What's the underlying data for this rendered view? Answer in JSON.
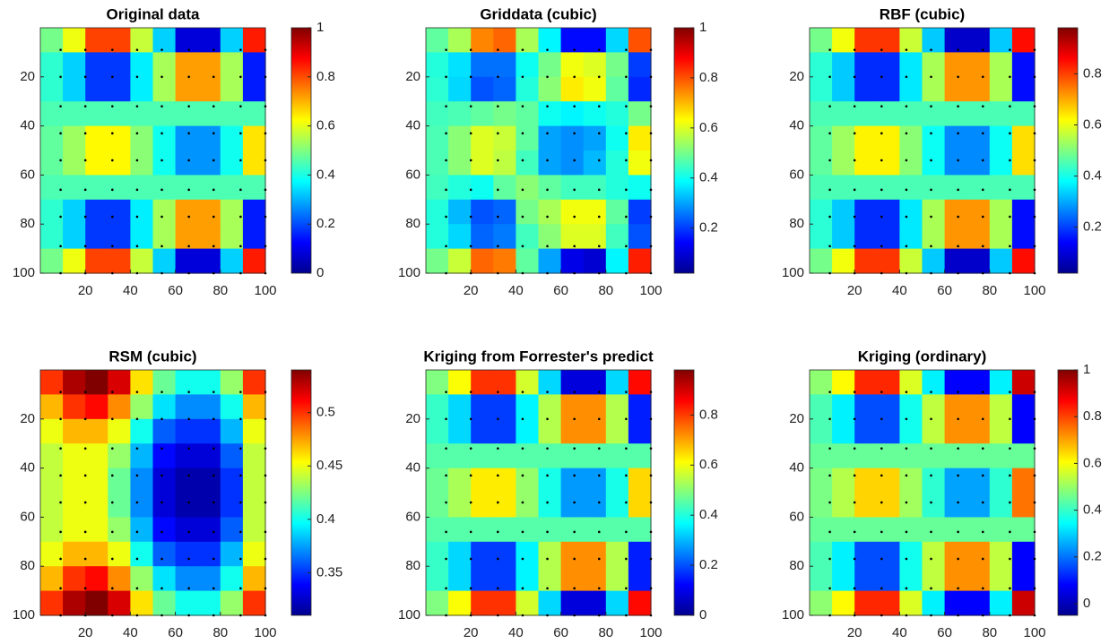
{
  "chart_data": [
    {
      "type": "heatmap",
      "title": "Original data",
      "colormap": "jet",
      "y_reversed": true,
      "xlim": [
        0,
        100
      ],
      "ylim": [
        0,
        100
      ],
      "xticks": [
        20,
        40,
        60,
        80,
        100
      ],
      "yticks": [
        20,
        40,
        60,
        80,
        100
      ],
      "clim": [
        0,
        1
      ],
      "cticks": [
        0,
        0.2,
        0.4,
        0.6,
        0.8,
        1
      ],
      "sample_positions": [
        9,
        20,
        32,
        43,
        54,
        66,
        77,
        89,
        100
      ],
      "z": [
        [
          0.49,
          0.61,
          0.81,
          0.81,
          0.57,
          0.33,
          0.09,
          0.09,
          0.33,
          0.85
        ],
        [
          0.42,
          0.33,
          0.18,
          0.18,
          0.36,
          0.54,
          0.72,
          0.72,
          0.54,
          0.15
        ],
        [
          0.42,
          0.33,
          0.18,
          0.18,
          0.36,
          0.54,
          0.72,
          0.72,
          0.54,
          0.15
        ],
        [
          0.45,
          0.45,
          0.45,
          0.45,
          0.45,
          0.45,
          0.45,
          0.45,
          0.45,
          0.45
        ],
        [
          0.47,
          0.53,
          0.63,
          0.63,
          0.51,
          0.39,
          0.27,
          0.27,
          0.39,
          0.65
        ],
        [
          0.47,
          0.53,
          0.63,
          0.63,
          0.51,
          0.39,
          0.27,
          0.27,
          0.39,
          0.65
        ],
        [
          0.45,
          0.45,
          0.45,
          0.45,
          0.45,
          0.45,
          0.45,
          0.45,
          0.45,
          0.45
        ],
        [
          0.42,
          0.33,
          0.18,
          0.18,
          0.36,
          0.54,
          0.72,
          0.72,
          0.54,
          0.15
        ],
        [
          0.42,
          0.33,
          0.18,
          0.18,
          0.36,
          0.54,
          0.72,
          0.72,
          0.54,
          0.15
        ],
        [
          0.49,
          0.61,
          0.81,
          0.81,
          0.57,
          0.33,
          0.09,
          0.09,
          0.33,
          0.85
        ]
      ]
    },
    {
      "type": "heatmap",
      "title": "Griddata (cubic)",
      "colormap": "jet",
      "y_reversed": true,
      "xlim": [
        0,
        100
      ],
      "ylim": [
        0,
        100
      ],
      "xticks": [
        20,
        40,
        60,
        80,
        100
      ],
      "yticks": [
        20,
        40,
        60,
        80,
        100
      ],
      "clim": [
        0.02,
        1
      ],
      "cticks": [
        0.2,
        0.4,
        0.6,
        0.8,
        1
      ],
      "sample_positions": [
        9,
        20,
        32,
        43,
        54,
        66,
        77,
        89,
        100
      ],
      "z": [
        [
          0.48,
          0.55,
          0.75,
          0.78,
          0.55,
          0.38,
          0.15,
          0.15,
          0.35,
          0.8
        ],
        [
          0.42,
          0.36,
          0.25,
          0.25,
          0.4,
          0.5,
          0.62,
          0.6,
          0.5,
          0.2
        ],
        [
          0.43,
          0.35,
          0.22,
          0.24,
          0.42,
          0.52,
          0.65,
          0.62,
          0.48,
          0.18
        ],
        [
          0.45,
          0.46,
          0.48,
          0.5,
          0.48,
          0.4,
          0.38,
          0.4,
          0.42,
          0.5
        ],
        [
          0.46,
          0.52,
          0.6,
          0.58,
          0.48,
          0.3,
          0.28,
          0.3,
          0.4,
          0.65
        ],
        [
          0.46,
          0.52,
          0.6,
          0.57,
          0.45,
          0.3,
          0.28,
          0.32,
          0.42,
          0.62
        ],
        [
          0.45,
          0.42,
          0.4,
          0.48,
          0.52,
          0.48,
          0.45,
          0.45,
          0.42,
          0.4
        ],
        [
          0.42,
          0.32,
          0.22,
          0.24,
          0.5,
          0.55,
          0.62,
          0.62,
          0.48,
          0.2
        ],
        [
          0.42,
          0.35,
          0.24,
          0.26,
          0.45,
          0.52,
          0.6,
          0.6,
          0.45,
          0.22
        ],
        [
          0.5,
          0.58,
          0.78,
          0.76,
          0.48,
          0.3,
          0.12,
          0.1,
          0.38,
          0.85
        ]
      ]
    },
    {
      "type": "heatmap",
      "title": "RBF (cubic)",
      "colormap": "jet",
      "y_reversed": true,
      "xlim": [
        0,
        100
      ],
      "ylim": [
        0,
        100
      ],
      "xticks": [
        20,
        40,
        60,
        80,
        100
      ],
      "yticks": [
        20,
        40,
        60,
        80,
        100
      ],
      "clim": [
        0.02,
        0.98
      ],
      "cticks": [
        0.2,
        0.4,
        0.6,
        0.8
      ],
      "sample_positions": [
        9,
        20,
        32,
        43,
        54,
        66,
        77,
        89,
        100
      ],
      "z": [
        [
          0.49,
          0.61,
          0.81,
          0.81,
          0.57,
          0.33,
          0.09,
          0.09,
          0.33,
          0.85
        ],
        [
          0.42,
          0.33,
          0.18,
          0.18,
          0.36,
          0.54,
          0.72,
          0.72,
          0.54,
          0.15
        ],
        [
          0.42,
          0.33,
          0.18,
          0.18,
          0.36,
          0.54,
          0.72,
          0.72,
          0.54,
          0.15
        ],
        [
          0.45,
          0.45,
          0.45,
          0.45,
          0.45,
          0.45,
          0.45,
          0.45,
          0.45,
          0.45
        ],
        [
          0.47,
          0.53,
          0.63,
          0.63,
          0.51,
          0.39,
          0.27,
          0.27,
          0.39,
          0.65
        ],
        [
          0.47,
          0.53,
          0.63,
          0.63,
          0.51,
          0.39,
          0.27,
          0.27,
          0.39,
          0.65
        ],
        [
          0.45,
          0.45,
          0.45,
          0.45,
          0.45,
          0.45,
          0.45,
          0.45,
          0.45,
          0.45
        ],
        [
          0.42,
          0.33,
          0.18,
          0.18,
          0.36,
          0.54,
          0.72,
          0.72,
          0.54,
          0.15
        ],
        [
          0.42,
          0.33,
          0.18,
          0.18,
          0.36,
          0.54,
          0.72,
          0.72,
          0.54,
          0.15
        ],
        [
          0.49,
          0.61,
          0.81,
          0.81,
          0.57,
          0.33,
          0.09,
          0.09,
          0.33,
          0.85
        ]
      ]
    },
    {
      "type": "heatmap",
      "title": "RSM (cubic)",
      "colormap": "jet",
      "y_reversed": true,
      "xlim": [
        0,
        100
      ],
      "ylim": [
        0,
        100
      ],
      "xticks": [
        20,
        40,
        60,
        80,
        100
      ],
      "yticks": [
        20,
        40,
        60,
        80,
        100
      ],
      "clim": [
        0.31,
        0.54
      ],
      "cticks": [
        0.35,
        0.4,
        0.45,
        0.5
      ],
      "sample_positions": [
        9,
        20,
        32,
        43,
        54,
        66,
        77,
        89,
        100
      ],
      "z": [
        [
          0.5,
          0.53,
          0.54,
          0.52,
          0.46,
          0.42,
          0.4,
          0.4,
          0.43,
          0.5
        ],
        [
          0.47,
          0.5,
          0.51,
          0.48,
          0.43,
          0.39,
          0.37,
          0.37,
          0.4,
          0.47
        ],
        [
          0.45,
          0.47,
          0.47,
          0.45,
          0.4,
          0.36,
          0.35,
          0.35,
          0.38,
          0.45
        ],
        [
          0.44,
          0.45,
          0.45,
          0.43,
          0.38,
          0.34,
          0.33,
          0.33,
          0.36,
          0.44
        ],
        [
          0.44,
          0.45,
          0.45,
          0.42,
          0.37,
          0.33,
          0.32,
          0.32,
          0.35,
          0.44
        ],
        [
          0.44,
          0.45,
          0.45,
          0.42,
          0.37,
          0.33,
          0.32,
          0.32,
          0.35,
          0.44
        ],
        [
          0.44,
          0.45,
          0.45,
          0.43,
          0.38,
          0.34,
          0.33,
          0.33,
          0.36,
          0.44
        ],
        [
          0.45,
          0.47,
          0.47,
          0.45,
          0.4,
          0.36,
          0.35,
          0.35,
          0.38,
          0.45
        ],
        [
          0.47,
          0.5,
          0.51,
          0.48,
          0.43,
          0.39,
          0.37,
          0.37,
          0.4,
          0.47
        ],
        [
          0.5,
          0.53,
          0.54,
          0.52,
          0.46,
          0.42,
          0.4,
          0.4,
          0.43,
          0.5
        ]
      ]
    },
    {
      "type": "heatmap",
      "title": "Kriging from Forrester's predict",
      "colormap": "jet",
      "y_reversed": true,
      "xlim": [
        0,
        100
      ],
      "ylim": [
        0,
        100
      ],
      "xticks": [
        20,
        40,
        60,
        80,
        100
      ],
      "yticks": [
        20,
        40,
        60,
        80,
        100
      ],
      "clim": [
        0,
        0.98
      ],
      "cticks": [
        0,
        0.2,
        0.4,
        0.6,
        0.8
      ],
      "sample_positions": [
        9,
        20,
        32,
        43,
        54,
        66,
        77,
        89,
        100
      ],
      "z": [
        [
          0.49,
          0.61,
          0.81,
          0.81,
          0.57,
          0.33,
          0.09,
          0.09,
          0.33,
          0.85
        ],
        [
          0.42,
          0.33,
          0.18,
          0.18,
          0.36,
          0.54,
          0.72,
          0.72,
          0.54,
          0.15
        ],
        [
          0.42,
          0.33,
          0.18,
          0.18,
          0.36,
          0.54,
          0.72,
          0.72,
          0.54,
          0.15
        ],
        [
          0.45,
          0.45,
          0.45,
          0.45,
          0.45,
          0.45,
          0.45,
          0.45,
          0.45,
          0.45
        ],
        [
          0.47,
          0.53,
          0.63,
          0.63,
          0.51,
          0.39,
          0.27,
          0.27,
          0.39,
          0.65
        ],
        [
          0.47,
          0.53,
          0.63,
          0.63,
          0.51,
          0.39,
          0.27,
          0.27,
          0.39,
          0.65
        ],
        [
          0.45,
          0.45,
          0.45,
          0.45,
          0.45,
          0.45,
          0.45,
          0.45,
          0.45,
          0.45
        ],
        [
          0.42,
          0.33,
          0.18,
          0.18,
          0.36,
          0.54,
          0.72,
          0.72,
          0.54,
          0.15
        ],
        [
          0.42,
          0.33,
          0.18,
          0.18,
          0.36,
          0.54,
          0.72,
          0.72,
          0.54,
          0.15
        ],
        [
          0.49,
          0.61,
          0.81,
          0.81,
          0.57,
          0.33,
          0.09,
          0.09,
          0.33,
          0.85
        ]
      ]
    },
    {
      "type": "heatmap",
      "title": "Kriging (ordinary)",
      "colormap": "jet",
      "y_reversed": true,
      "xlim": [
        0,
        100
      ],
      "ylim": [
        0,
        100
      ],
      "xticks": [
        20,
        40,
        60,
        80,
        100
      ],
      "yticks": [
        20,
        40,
        60,
        80,
        100
      ],
      "clim": [
        -0.05,
        1
      ],
      "cticks": [
        0,
        0.2,
        0.4,
        0.6,
        0.8,
        1
      ],
      "sample_positions": [
        9,
        20,
        32,
        43,
        54,
        66,
        77,
        89,
        100
      ],
      "z": [
        [
          0.49,
          0.61,
          0.83,
          0.83,
          0.57,
          0.33,
          0.08,
          0.08,
          0.33,
          0.92
        ],
        [
          0.42,
          0.33,
          0.16,
          0.16,
          0.36,
          0.54,
          0.72,
          0.72,
          0.54,
          0.08
        ],
        [
          0.42,
          0.33,
          0.16,
          0.16,
          0.36,
          0.54,
          0.72,
          0.72,
          0.54,
          0.08
        ],
        [
          0.45,
          0.45,
          0.45,
          0.45,
          0.45,
          0.45,
          0.45,
          0.45,
          0.45,
          0.45
        ],
        [
          0.47,
          0.53,
          0.65,
          0.65,
          0.51,
          0.39,
          0.25,
          0.25,
          0.39,
          0.75
        ],
        [
          0.47,
          0.53,
          0.65,
          0.65,
          0.51,
          0.39,
          0.25,
          0.25,
          0.39,
          0.75
        ],
        [
          0.45,
          0.45,
          0.45,
          0.45,
          0.45,
          0.45,
          0.45,
          0.45,
          0.45,
          0.45
        ],
        [
          0.42,
          0.33,
          0.16,
          0.16,
          0.36,
          0.54,
          0.72,
          0.72,
          0.54,
          0.08
        ],
        [
          0.42,
          0.33,
          0.16,
          0.16,
          0.36,
          0.54,
          0.72,
          0.72,
          0.54,
          0.08
        ],
        [
          0.49,
          0.61,
          0.83,
          0.83,
          0.57,
          0.33,
          0.08,
          0.08,
          0.33,
          0.92
        ]
      ]
    }
  ]
}
